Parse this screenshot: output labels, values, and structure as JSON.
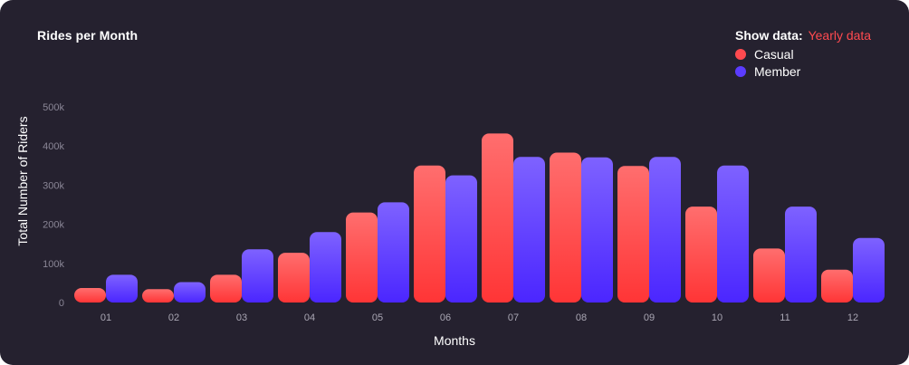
{
  "header": {
    "show_data_label": "Show data:",
    "show_data_value": "Yearly data"
  },
  "colors": {
    "background": "#25212f",
    "casual_top": "#ff6e6e",
    "casual_bottom": "#ff3536",
    "member_top": "#7e62ff",
    "member_bottom": "#4b26ff",
    "accent": "#ff4a4f"
  },
  "chart_data": {
    "type": "bar",
    "title": "Rides per Month",
    "xlabel": "Months",
    "ylabel": "Total Number  of Riders",
    "ylim": [
      0,
      500000
    ],
    "yticks": [
      0,
      100000,
      200000,
      300000,
      400000,
      500000
    ],
    "ytick_labels": [
      "0",
      "100k",
      "200k",
      "300k",
      "400k",
      "500k"
    ],
    "categories": [
      "01",
      "02",
      "03",
      "04",
      "05",
      "06",
      "07",
      "08",
      "09",
      "10",
      "11",
      "12"
    ],
    "legend_position": "top-right",
    "grid": false,
    "series": [
      {
        "name": "Casual",
        "color": "#ff4a4f",
        "values": [
          37000,
          34000,
          71000,
          127000,
          230000,
          350000,
          432000,
          383000,
          349000,
          245000,
          138000,
          84000
        ]
      },
      {
        "name": "Member",
        "color": "#5b3cff",
        "values": [
          71000,
          52000,
          136000,
          180000,
          256000,
          325000,
          372000,
          371000,
          372000,
          350000,
          245000,
          165000
        ]
      }
    ]
  }
}
